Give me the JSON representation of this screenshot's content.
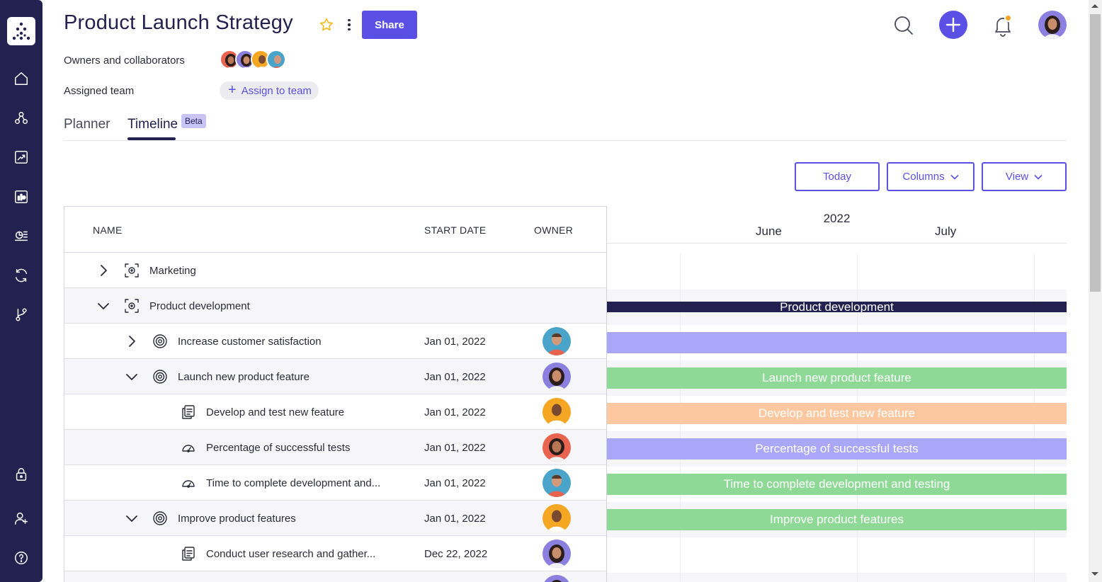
{
  "header": {
    "title": "Product Launch Strategy",
    "share_label": "Share",
    "owners_label": "Owners and collaborators",
    "assigned_team_label": "Assigned team",
    "assign_button_label": "Assign to team"
  },
  "tabs": [
    {
      "label": "Planner",
      "active": false
    },
    {
      "label": "Timeline",
      "active": true,
      "badge": "Beta"
    }
  ],
  "toolbar": {
    "today_label": "Today",
    "columns_label": "Columns",
    "view_label": "View"
  },
  "table": {
    "columns": [
      "NAME",
      "START DATE",
      "OWNER"
    ],
    "rows": [
      {
        "name": "Marketing",
        "date": "",
        "type": "group",
        "expanded": false
      },
      {
        "name": "Product development",
        "date": "",
        "type": "group",
        "expanded": true
      },
      {
        "name": "Increase customer satisfaction",
        "date": "Jan 01, 2022",
        "type": "goal",
        "expanded": false
      },
      {
        "name": "Launch new product feature",
        "date": "Jan 01, 2022",
        "type": "goal",
        "expanded": true
      },
      {
        "name": "Develop and test new feature",
        "date": "Jan 01, 2022",
        "type": "task"
      },
      {
        "name": "Percentage of successful tests",
        "date": "Jan 01, 2022",
        "type": "metric"
      },
      {
        "name": "Time to complete development and...",
        "date": "Jan 01, 2022",
        "type": "metric"
      },
      {
        "name": "Improve product features",
        "date": "Jan 01, 2022",
        "type": "goal",
        "expanded": true
      },
      {
        "name": "Conduct user research and gather...",
        "date": "Dec 22, 2022",
        "type": "task"
      }
    ]
  },
  "timeline": {
    "year": "2022",
    "months": [
      "June",
      "July"
    ],
    "bars": [
      {
        "label": "Product development",
        "color": "#23214f"
      },
      {
        "label": "",
        "color": "#aaa6f8"
      },
      {
        "label": "Launch new product feature",
        "color": "#8ed996"
      },
      {
        "label": "Develop and test new feature",
        "color": "#fdc7a0"
      },
      {
        "label": "Percentage of successful tests",
        "color": "#aaa6f8"
      },
      {
        "label": "Time to complete development and testing",
        "color": "#8ed996"
      },
      {
        "label": "Improve product features",
        "color": "#8ed996"
      }
    ]
  },
  "colors": {
    "sidebar": "#23214f",
    "accent": "#5b50e6",
    "notification": "#f5a623"
  },
  "icons": {
    "sidebar": [
      "home-icon",
      "hierarchy-icon",
      "chart-trend-icon",
      "dashboard-icon",
      "report-icon",
      "refresh-icon",
      "branch-icon",
      "lock-icon",
      "add-user-icon",
      "help-icon"
    ],
    "header": [
      "star-icon",
      "more-icon",
      "search-icon",
      "plus-icon",
      "bell-icon"
    ]
  }
}
